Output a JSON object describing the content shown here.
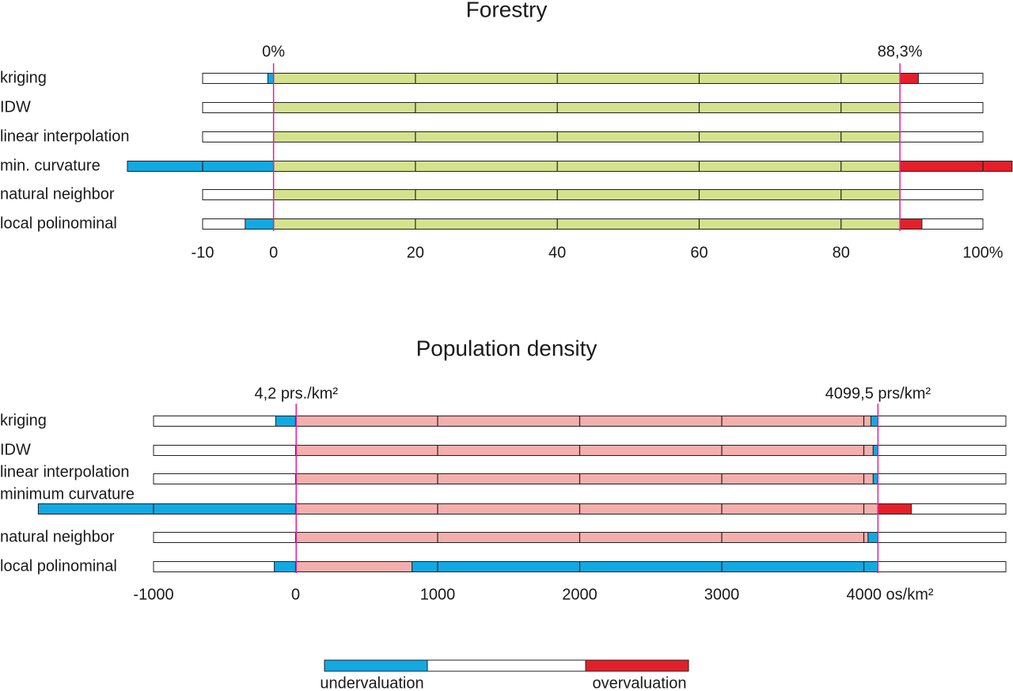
{
  "chart_data": [
    {
      "type": "range-bar",
      "title": "Forestry",
      "categories": [
        "kriging",
        "IDW",
        "linear interpolation",
        "min. curvature",
        "natural neighbor",
        "local polinominal"
      ],
      "min": [
        -0.8,
        0,
        0,
        -20.6,
        0,
        -4.0
      ],
      "max": [
        90.9,
        88.3,
        88.3,
        104.1,
        88.3,
        91.4
      ],
      "ref": [
        {
          "value": 0,
          "label": "0%"
        },
        {
          "value": 88.3,
          "label": "88,3%"
        }
      ],
      "xlim": [
        -10,
        100
      ],
      "xticks": [
        -10,
        0,
        20,
        40,
        60,
        80,
        {
          "value": 100,
          "label": "100%"
        }
      ],
      "fill_color": "#d5e28d",
      "under_color": "#12a9e2",
      "over_color": "#e3202a",
      "ref_color": "#e0209a"
    },
    {
      "type": "range-bar",
      "title": "Population density",
      "categories": [
        "kriging",
        "IDW",
        "linear interpolation",
        "minimum curvature",
        "natural neighbor",
        "local polinominal"
      ],
      "min": [
        -140,
        4.2,
        4.2,
        -1811,
        4.2,
        -150
      ],
      "max": [
        4050,
        4066,
        4066,
        4334,
        4030,
        820
      ],
      "ref": [
        {
          "value": 4.2,
          "label": "4,2 prs./km²"
        },
        {
          "value": 4099.5,
          "label": "4099,5 prs/km²"
        }
      ],
      "xlim": [
        -1000,
        5000
      ],
      "xticks": [
        -1000,
        0,
        1000,
        2000,
        3000,
        {
          "value": 4000,
          "label": "4000 os/km²"
        }
      ],
      "fill_color": "#f4afad",
      "under_color": "#12a9e2",
      "over_color": "#e3202a",
      "ref_color": "#e0209a"
    }
  ],
  "legend": {
    "items": [
      {
        "name": "undervaluation",
        "color": "#12a9e2"
      },
      {
        "name": "overvaluation",
        "color": "#e3202a"
      }
    ]
  }
}
